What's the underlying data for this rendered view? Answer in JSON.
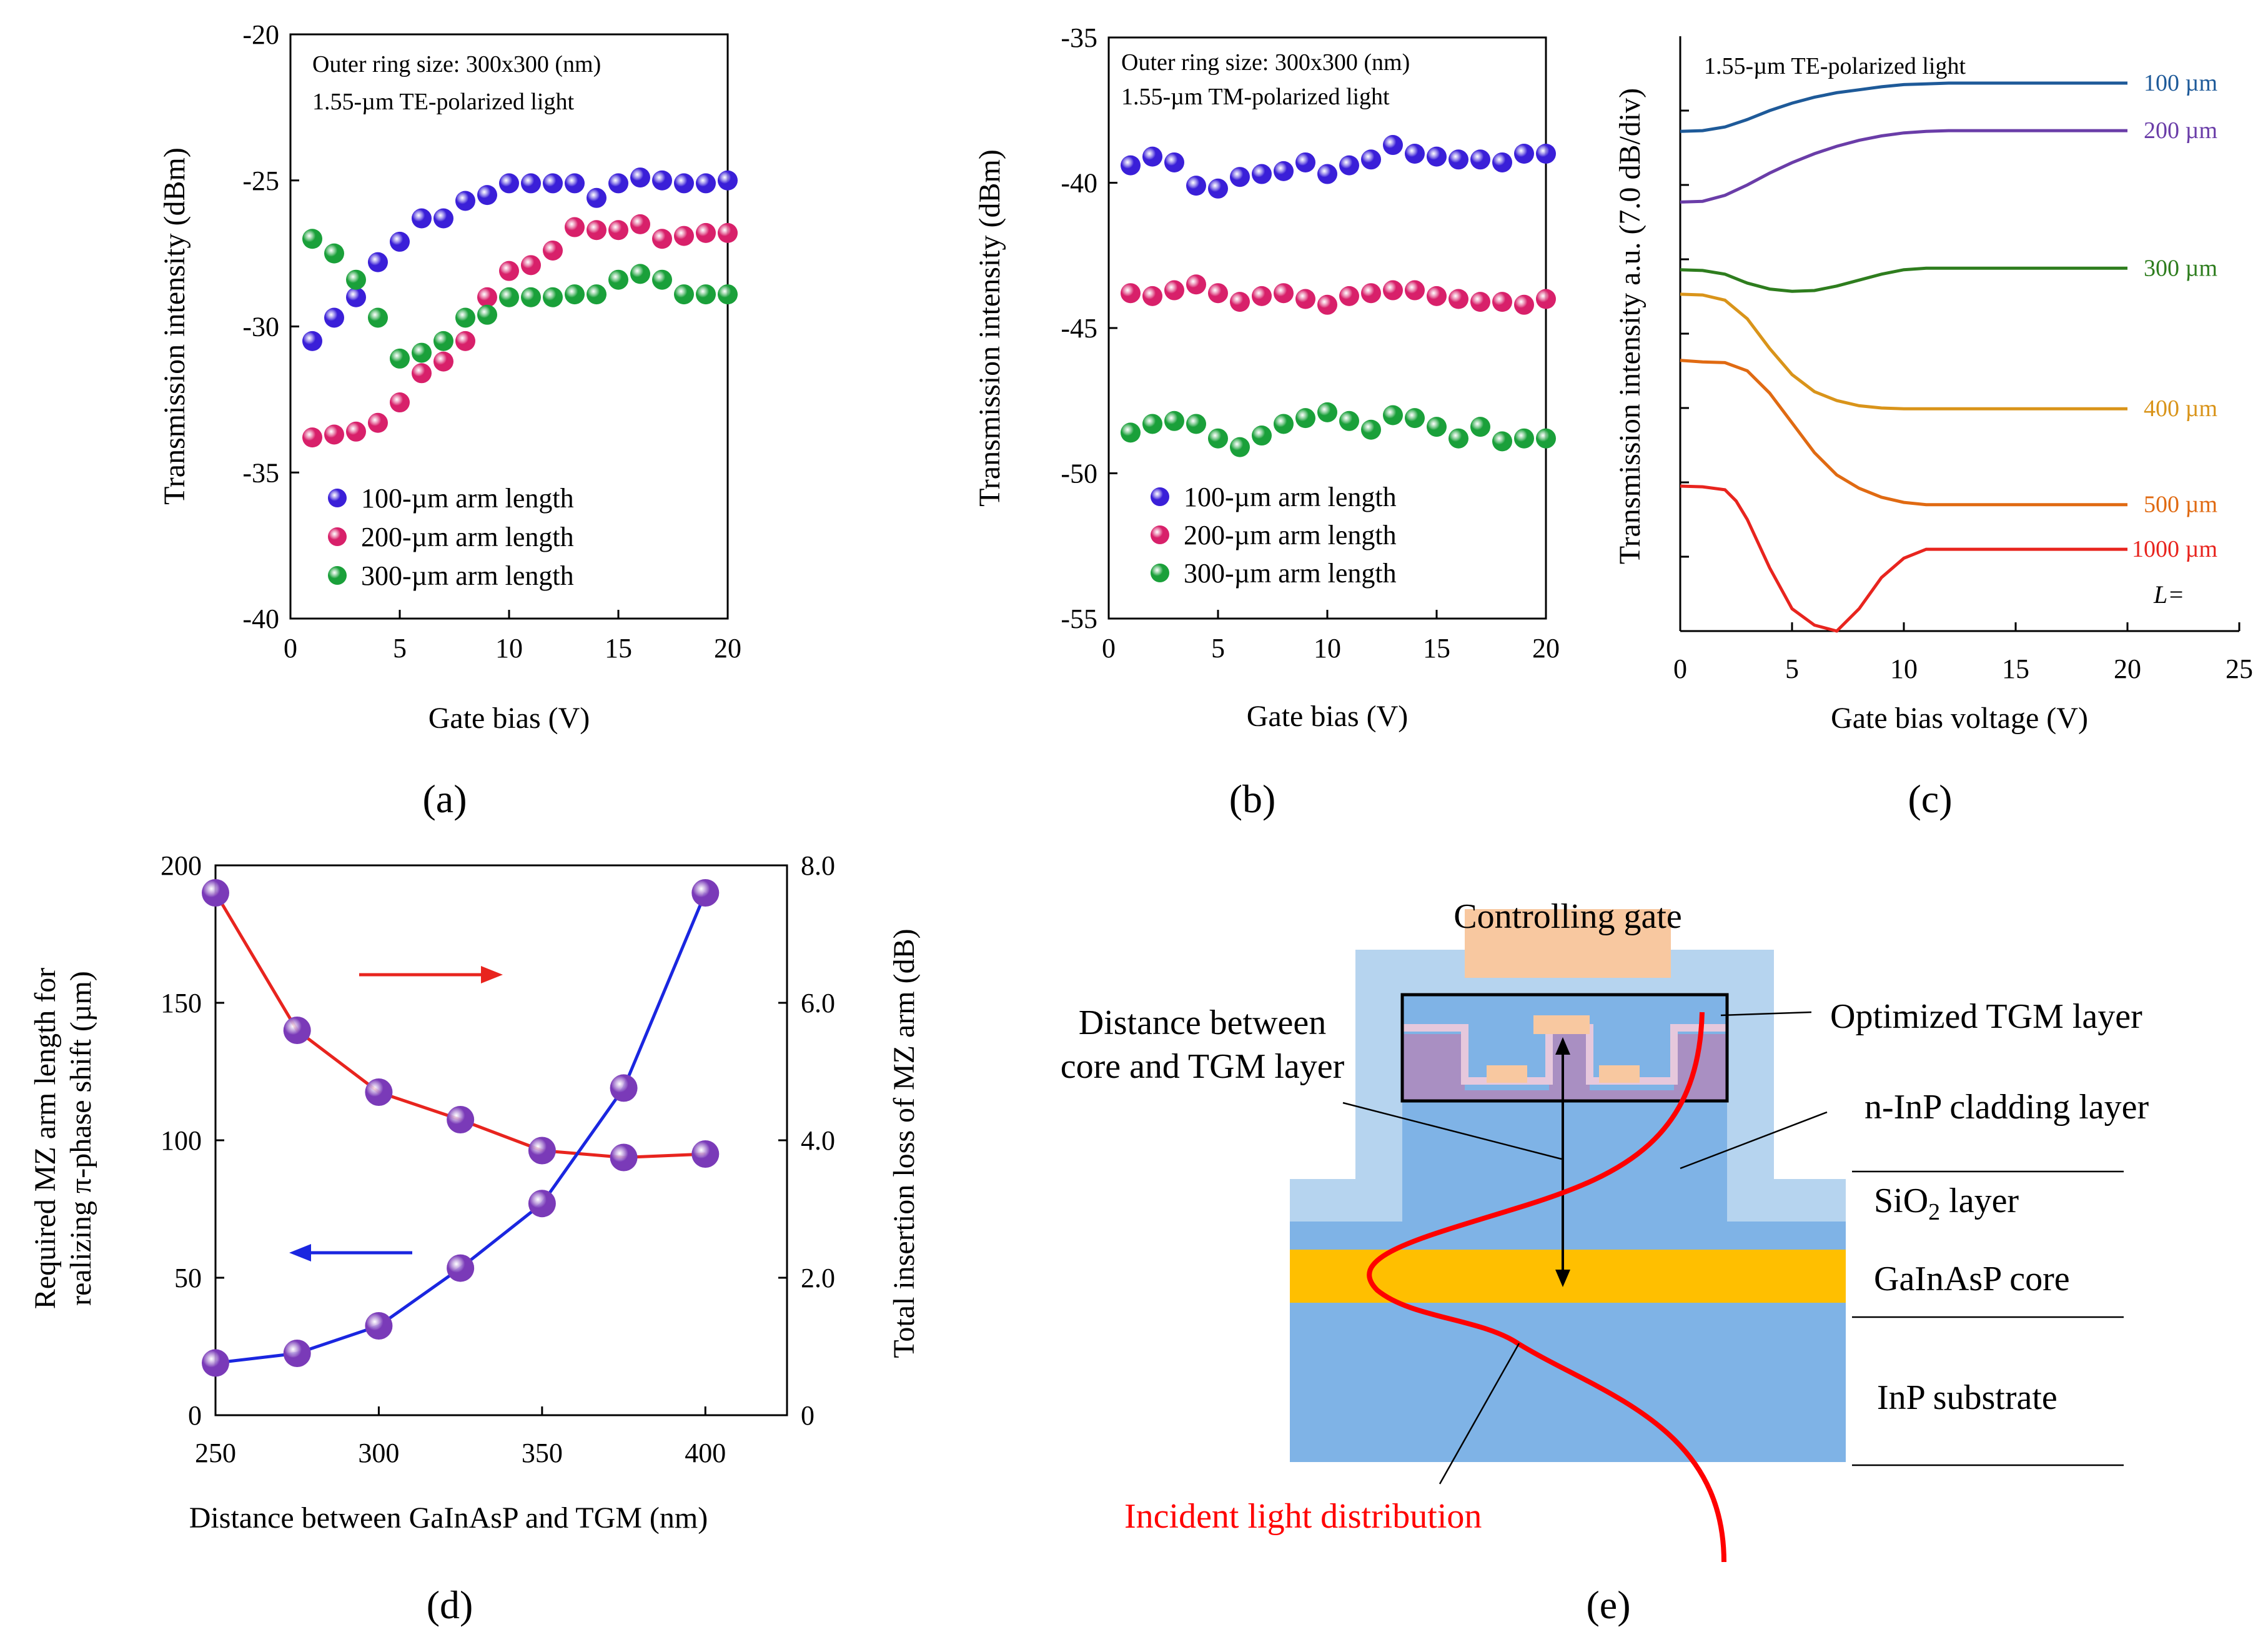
{
  "colors": {
    "blue_dot": "#3a1fd8",
    "red_dot": "#d8206a",
    "green_dot": "#1aa03a",
    "line_red": "#e8241e",
    "line_blue": "#1a26e0",
    "orange_gate": "#f8c8a0",
    "light_blue": "#b6d4ef",
    "mid_blue": "#7fb3e6",
    "core_yellow": "#ffbf00",
    "tgm_purple": "#a98fc2",
    "tgm_pink": "#e6c8dc",
    "dist_red": "#ff0000"
  },
  "captions": {
    "a": "(a)",
    "b": "(b)",
    "c": "(c)",
    "d": "(d)",
    "e": "(e)"
  },
  "chart_data": [
    {
      "id": "a",
      "type": "scatter",
      "xlabel": "Gate bias (V)",
      "ylabel": "Transmission intensity (dBm)",
      "xlim": [
        0,
        20
      ],
      "ylim": [
        -40,
        -20
      ],
      "xticks": [
        0,
        5,
        10,
        15,
        20
      ],
      "yticks": [
        -20,
        -25,
        -30,
        -35,
        -40
      ],
      "annotations": [
        "Outer ring size: 300x300 (nm)",
        "1.55-µm TE-polarized light"
      ],
      "legend_position": "lower-left",
      "series": [
        {
          "name": "100-µm arm length",
          "color": "#3a1fd8",
          "x": [
            1,
            2,
            3,
            4,
            5,
            6,
            7,
            8,
            9,
            10,
            11,
            12,
            13,
            14,
            15,
            16,
            17,
            18,
            19,
            20
          ],
          "y": [
            -30.5,
            -29.7,
            -29.0,
            -27.8,
            -27.1,
            -26.3,
            -26.3,
            -25.7,
            -25.5,
            -25.1,
            -25.1,
            -25.1,
            -25.1,
            -25.6,
            -25.1,
            -24.9,
            -25.0,
            -25.1,
            -25.1,
            -25.0
          ]
        },
        {
          "name": "200-µm arm length",
          "color": "#d8206a",
          "x": [
            1,
            2,
            3,
            4,
            5,
            6,
            7,
            8,
            9,
            10,
            11,
            12,
            13,
            14,
            15,
            16,
            17,
            18,
            19,
            20
          ],
          "y": [
            -33.8,
            -33.7,
            -33.6,
            -33.3,
            -32.6,
            -31.6,
            -31.2,
            -30.5,
            -29.0,
            -28.1,
            -27.9,
            -27.4,
            -26.6,
            -26.7,
            -26.7,
            -26.5,
            -27.0,
            -26.9,
            -26.8,
            -26.8
          ]
        },
        {
          "name": "300-µm arm length",
          "color": "#1aa03a",
          "x": [
            1,
            2,
            3,
            4,
            5,
            6,
            7,
            8,
            9,
            10,
            11,
            12,
            13,
            14,
            15,
            16,
            17,
            18,
            19,
            20
          ],
          "y": [
            -27.0,
            -27.5,
            -28.4,
            -29.7,
            -31.1,
            -30.9,
            -30.5,
            -29.7,
            -29.6,
            -29.0,
            -29.0,
            -29.0,
            -28.9,
            -28.9,
            -28.4,
            -28.2,
            -28.4,
            -28.9,
            -28.9,
            -28.9
          ]
        }
      ]
    },
    {
      "id": "b",
      "type": "scatter",
      "xlabel": "Gate bias (V)",
      "ylabel": "Transmission intensity (dBm)",
      "xlim": [
        0,
        20
      ],
      "ylim": [
        -55,
        -35
      ],
      "xticks": [
        0,
        5,
        10,
        15,
        20
      ],
      "yticks": [
        -35,
        -40,
        -45,
        -50,
        -55
      ],
      "annotations": [
        "Outer ring size: 300x300 (nm)",
        "1.55-µm TM-polarized light"
      ],
      "legend_position": "lower-left",
      "series": [
        {
          "name": "100-µm arm length",
          "color": "#3a1fd8",
          "x": [
            1,
            2,
            3,
            4,
            5,
            6,
            7,
            8,
            9,
            10,
            11,
            12,
            13,
            14,
            15,
            16,
            17,
            18,
            19,
            20
          ],
          "y": [
            -39.4,
            -39.1,
            -39.3,
            -40.1,
            -40.2,
            -39.8,
            -39.7,
            -39.6,
            -39.3,
            -39.7,
            -39.4,
            -39.2,
            -38.7,
            -39.0,
            -39.1,
            -39.2,
            -39.2,
            -39.3,
            -39.0,
            -39.0
          ]
        },
        {
          "name": "200-µm arm length",
          "color": "#d8206a",
          "x": [
            1,
            2,
            3,
            4,
            5,
            6,
            7,
            8,
            9,
            10,
            11,
            12,
            13,
            14,
            15,
            16,
            17,
            18,
            19,
            20
          ],
          "y": [
            -43.8,
            -43.9,
            -43.7,
            -43.5,
            -43.8,
            -44.1,
            -43.9,
            -43.8,
            -44.0,
            -44.2,
            -43.9,
            -43.8,
            -43.7,
            -43.7,
            -43.9,
            -44.0,
            -44.1,
            -44.1,
            -44.2,
            -44.0
          ]
        },
        {
          "name": "300-µm arm length",
          "color": "#1aa03a",
          "x": [
            1,
            2,
            3,
            4,
            5,
            6,
            7,
            8,
            9,
            10,
            11,
            12,
            13,
            14,
            15,
            16,
            17,
            18,
            19,
            20
          ],
          "y": [
            -48.6,
            -48.3,
            -48.2,
            -48.3,
            -48.8,
            -49.1,
            -48.7,
            -48.3,
            -48.1,
            -47.9,
            -48.2,
            -48.5,
            -48.0,
            -48.1,
            -48.4,
            -48.8,
            -48.4,
            -48.9,
            -48.8,
            -48.8
          ]
        }
      ]
    },
    {
      "id": "c",
      "type": "line",
      "xlabel": "Gate bias voltage (V)",
      "ylabel": "Transmission intensity a.u. (7.0 dB/div)",
      "xlim": [
        0,
        25
      ],
      "ylim": [
        0,
        8
      ],
      "xticks": [
        0,
        5,
        10,
        15,
        20,
        25
      ],
      "annotations": [
        "1.55-µm TE-polarized light"
      ],
      "length_label": "L=",
      "series": [
        {
          "name": "100 µm",
          "color": "#1e5a99",
          "x": [
            0,
            1,
            2,
            3,
            4,
            5,
            6,
            7,
            8,
            9,
            10,
            11,
            12,
            13,
            15,
            17,
            20
          ],
          "y": [
            6.72,
            6.73,
            6.78,
            6.88,
            7.0,
            7.1,
            7.18,
            7.24,
            7.28,
            7.32,
            7.35,
            7.36,
            7.37,
            7.37,
            7.37,
            7.37,
            7.37
          ]
        },
        {
          "name": "200 µm",
          "color": "#6a3da8",
          "x": [
            0,
            1,
            2,
            3,
            4,
            5,
            6,
            7,
            8,
            9,
            10,
            11,
            12,
            14,
            16,
            20
          ],
          "y": [
            5.77,
            5.78,
            5.86,
            6.0,
            6.16,
            6.3,
            6.42,
            6.52,
            6.6,
            6.66,
            6.7,
            6.72,
            6.73,
            6.73,
            6.73,
            6.73
          ]
        },
        {
          "name": "300 µm",
          "color": "#2e7d1e",
          "x": [
            0,
            1,
            2,
            3,
            4,
            5,
            6,
            7,
            8,
            9,
            10,
            11,
            12,
            14,
            16,
            20
          ],
          "y": [
            4.86,
            4.85,
            4.8,
            4.68,
            4.6,
            4.57,
            4.58,
            4.64,
            4.72,
            4.8,
            4.86,
            4.88,
            4.88,
            4.88,
            4.88,
            4.88
          ]
        },
        {
          "name": "400 µm",
          "color": "#d9941a",
          "x": [
            0,
            1,
            2,
            3,
            4,
            5,
            6,
            7,
            8,
            9,
            10,
            11,
            12,
            14,
            16,
            20
          ],
          "y": [
            4.53,
            4.52,
            4.45,
            4.2,
            3.8,
            3.45,
            3.22,
            3.1,
            3.03,
            3.0,
            2.99,
            2.99,
            2.99,
            2.99,
            2.99,
            2.99
          ]
        },
        {
          "name": "500 µm",
          "color": "#e06a12",
          "x": [
            0,
            1,
            2,
            3,
            4,
            5,
            6,
            7,
            8,
            9,
            10,
            11,
            12,
            14,
            16,
            20
          ],
          "y": [
            3.64,
            3.62,
            3.61,
            3.5,
            3.2,
            2.8,
            2.4,
            2.1,
            1.92,
            1.8,
            1.73,
            1.7,
            1.7,
            1.7,
            1.7,
            1.7
          ]
        },
        {
          "name": "1000 µm",
          "color": "#e8241e",
          "x": [
            0,
            1,
            2,
            2.5,
            3,
            4,
            5,
            6,
            7,
            8,
            9,
            10,
            11,
            12,
            14,
            16,
            20
          ],
          "y": [
            1.95,
            1.94,
            1.9,
            1.75,
            1.5,
            0.85,
            0.3,
            0.08,
            0.0,
            0.3,
            0.72,
            0.98,
            1.1,
            1.1,
            1.1,
            1.1,
            1.1
          ]
        }
      ]
    },
    {
      "id": "d",
      "type": "line",
      "xlabel": "Distance between GaInAsP and TGM (nm)",
      "ylabel_left_1": "Required MZ arm length for",
      "ylabel_left_2": "realizing π-phase shift (µm)",
      "ylabel_right": "Total insertion loss of MZ arm (dB)",
      "xlim": [
        250,
        425
      ],
      "ylim_left": [
        0,
        200
      ],
      "ylim_right": [
        0,
        8
      ],
      "xticks": [
        250,
        300,
        350,
        400
      ],
      "yticks_left": [
        0,
        50,
        100,
        150,
        200
      ],
      "yticks_right": [
        "0",
        "2.0",
        "4.0",
        "6.0",
        "8.0"
      ],
      "series": [
        {
          "name": "Total insertion loss of MZ arm",
          "axis": "right",
          "color": "#e8241e",
          "x": [
            250,
            275,
            300,
            325,
            350,
            375,
            400
          ],
          "y": [
            7.6,
            5.6,
            4.7,
            4.3,
            3.85,
            3.75,
            3.8
          ]
        },
        {
          "name": "Required MZ arm length",
          "axis": "left",
          "color": "#1a26e0",
          "x": [
            250,
            275,
            300,
            325,
            350,
            375,
            400
          ],
          "y": [
            19,
            22.5,
            32.5,
            53.5,
            77,
            119,
            190
          ]
        }
      ]
    }
  ],
  "diagram_e": {
    "controlling_gate": "Controlling gate",
    "distance_label_1": "Distance between",
    "distance_label_2": "core and TGM layer",
    "tgm_layer": "Optimized TGM layer",
    "cladding": "n-InP cladding layer",
    "sio2_main": "SiO",
    "sio2_sub": "2",
    "sio2_rest": " layer",
    "core": "GaInAsP core",
    "substrate": "InP substrate",
    "incident": "Incident light distribution"
  }
}
